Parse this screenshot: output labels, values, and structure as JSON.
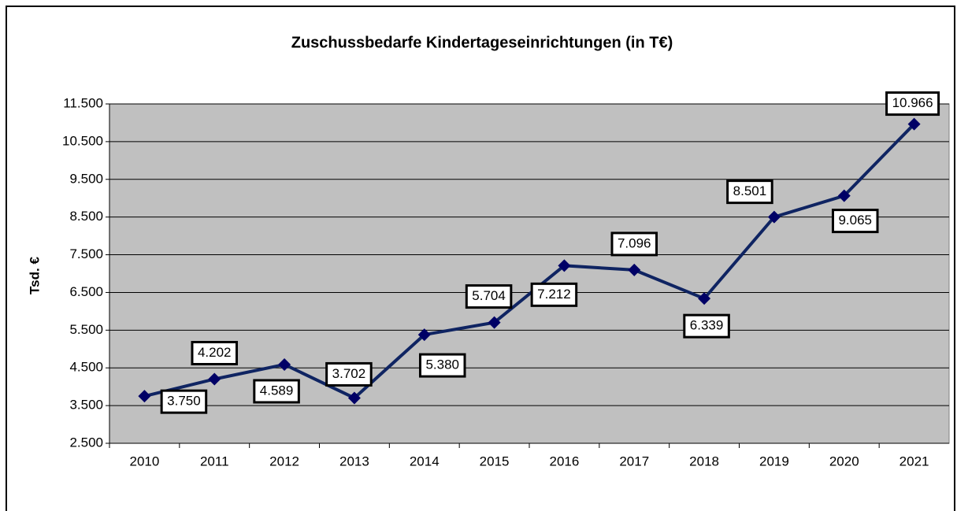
{
  "chart_data": {
    "type": "line",
    "title": "Zuschussbedarfe Kindertageseinrichtungen (in T€)",
    "y_label": "Tsd. €",
    "categories": [
      "2010",
      "2011",
      "2012",
      "2013",
      "2014",
      "2015",
      "2016",
      "2017",
      "2018",
      "2019",
      "2020",
      "2021"
    ],
    "series": [
      {
        "name": "Zuschussbedarf",
        "color": "#0f2462",
        "values": [
          3750,
          4202,
          4589,
          3702,
          5380,
          5704,
          7212,
          7096,
          6339,
          8501,
          9065,
          10966
        ],
        "value_labels": [
          "3.750",
          "4.202",
          "4.589",
          "3.702",
          "5.380",
          "5.704",
          "7.212",
          "7.096",
          "6.339",
          "8.501",
          "9.065",
          "10.966"
        ]
      }
    ],
    "ylim": [
      2500,
      11500
    ],
    "yticks": [
      {
        "value": 2500,
        "label": "2.500"
      },
      {
        "value": 3500,
        "label": "3.500"
      },
      {
        "value": 4500,
        "label": "4.500"
      },
      {
        "value": 5500,
        "label": "5.500"
      },
      {
        "value": 6500,
        "label": "6.500"
      },
      {
        "value": 7500,
        "label": "7.500"
      },
      {
        "value": 8500,
        "label": "8.500"
      },
      {
        "value": 9500,
        "label": "9.500"
      },
      {
        "value": 10500,
        "label": "10.500"
      },
      {
        "value": 11500,
        "label": "11.500"
      }
    ],
    "grid": true
  }
}
